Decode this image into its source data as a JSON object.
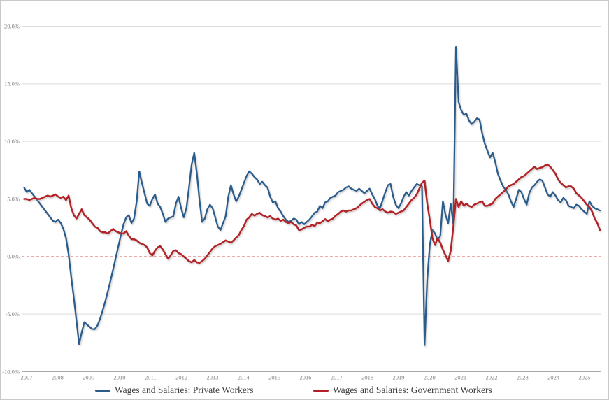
{
  "chart_data": {
    "type": "line",
    "title": "",
    "xlabel": "",
    "ylabel": "",
    "unit": "percent (year-over-year)",
    "x_frequency": "monthly",
    "x_start": "2007-01",
    "x_end": "2025-05",
    "ylim": [
      -10,
      20
    ],
    "grid": "horizontal",
    "legend_position": "bottom",
    "zero_line_style": "dashed-red",
    "colors": {
      "gridline": "#dcdcdc",
      "axis": "#a8a8a8",
      "tick_label": "#7f7f7f",
      "zero_dash": "#e07878",
      "private": "#2b5c8c",
      "government": "#b22026"
    },
    "yticks": [
      {
        "value": 20,
        "label": "20.0%"
      },
      {
        "value": 15,
        "label": "15.0%"
      },
      {
        "value": 10,
        "label": "10.0%"
      },
      {
        "value": 5,
        "label": "5.0%"
      },
      {
        "value": 0,
        "label": "0.0%"
      },
      {
        "value": -5,
        "label": "-5.0%"
      },
      {
        "value": -10,
        "label": "-10.0%"
      }
    ],
    "xticks": [
      "2007",
      "2008",
      "2009",
      "2010",
      "2011",
      "2012",
      "2013",
      "2014",
      "2015",
      "2016",
      "2017",
      "2018",
      "2019",
      "2020",
      "2021",
      "2022",
      "2023",
      "2024",
      "2025"
    ],
    "series": [
      {
        "name": "Wages and Salaries: Private Workers",
        "color": "#2b5c8c",
        "values": [
          6.0,
          5.6,
          5.8,
          5.5,
          5.2,
          4.9,
          4.6,
          4.3,
          4.0,
          3.7,
          3.4,
          3.1,
          3.0,
          3.2,
          2.9,
          2.4,
          1.6,
          0.2,
          -1.8,
          -3.6,
          -5.6,
          -7.6,
          -6.6,
          -5.7,
          -5.9,
          -6.1,
          -6.3,
          -6.3,
          -6.0,
          -5.4,
          -4.7,
          -3.9,
          -3.0,
          -2.1,
          -1.1,
          -0.1,
          0.9,
          1.9,
          2.8,
          3.4,
          3.6,
          2.9,
          3.3,
          4.8,
          7.4,
          6.4,
          5.5,
          4.6,
          4.4,
          5.0,
          5.4,
          4.6,
          4.3,
          3.7,
          3.0,
          3.3,
          3.4,
          3.5,
          4.6,
          5.2,
          4.2,
          3.4,
          4.2,
          6.0,
          8.0,
          9.0,
          7.2,
          4.9,
          3.0,
          3.3,
          4.1,
          4.5,
          4.2,
          3.4,
          2.6,
          2.3,
          2.9,
          3.5,
          5.2,
          6.2,
          5.4,
          4.8,
          5.2,
          5.8,
          6.4,
          7.0,
          7.4,
          7.2,
          6.9,
          6.7,
          6.3,
          6.5,
          6.2,
          6.0,
          5.2,
          4.7,
          4.8,
          4.2,
          3.9,
          3.5,
          3.2,
          3.0,
          3.1,
          3.3,
          3.2,
          2.8,
          3.0,
          2.8,
          3.0,
          3.2,
          3.5,
          3.8,
          3.9,
          4.4,
          4.2,
          4.7,
          4.8,
          5.1,
          5.2,
          5.3,
          5.6,
          5.7,
          5.8,
          6.0,
          6.1,
          5.9,
          5.8,
          5.7,
          5.9,
          5.7,
          5.5,
          5.7,
          5.9,
          5.4,
          5.0,
          4.4,
          4.2,
          4.9,
          5.6,
          6.2,
          6.3,
          5.2,
          4.5,
          4.2,
          4.6,
          5.2,
          5.6,
          5.3,
          5.7,
          6.0,
          6.3,
          6.2,
          6.1,
          -7.7,
          -2.0,
          1.0,
          2.3,
          2.0,
          1.4,
          1.8,
          4.8,
          3.6,
          2.9,
          4.6,
          2.8,
          18.2,
          13.4,
          12.7,
          12.3,
          12.4,
          11.8,
          11.5,
          11.7,
          12.0,
          11.9,
          10.7,
          9.8,
          9.2,
          8.6,
          9.0,
          8.2,
          7.2,
          6.6,
          6.1,
          5.8,
          5.4,
          4.8,
          4.3,
          5.0,
          5.8,
          5.6,
          5.0,
          4.5,
          5.5,
          6.0,
          6.2,
          6.5,
          6.7,
          6.6,
          6.0,
          5.4,
          5.2,
          5.6,
          5.3,
          4.9,
          4.7,
          5.1,
          4.9,
          4.4,
          4.3,
          4.2,
          4.5,
          4.4,
          4.1,
          3.9,
          3.7,
          4.8,
          4.4,
          4.2,
          4.1,
          4.0
        ]
      },
      {
        "name": "Wages and Salaries: Government Workers",
        "color": "#b22026",
        "values": [
          5.0,
          5.0,
          4.9,
          5.0,
          5.1,
          5.0,
          5.0,
          5.1,
          5.2,
          5.3,
          5.2,
          5.3,
          5.4,
          5.2,
          5.1,
          5.2,
          4.9,
          5.3,
          4.2,
          3.6,
          3.3,
          3.7,
          4.1,
          3.6,
          3.4,
          3.2,
          2.9,
          2.6,
          2.5,
          2.2,
          2.1,
          2.1,
          2.0,
          2.2,
          2.4,
          2.2,
          2.1,
          2.0,
          2.0,
          2.2,
          1.8,
          1.5,
          1.5,
          1.4,
          1.2,
          1.1,
          1.0,
          0.8,
          0.3,
          0.1,
          0.5,
          0.8,
          0.9,
          0.6,
          0.2,
          -0.2,
          0.1,
          0.5,
          0.55,
          0.3,
          0.2,
          0.0,
          -0.2,
          -0.4,
          -0.5,
          -0.3,
          -0.5,
          -0.55,
          -0.4,
          -0.2,
          0.1,
          0.4,
          0.7,
          0.9,
          1.0,
          1.1,
          1.25,
          1.4,
          1.3,
          1.2,
          1.4,
          1.65,
          1.85,
          2.3,
          2.65,
          3.2,
          3.4,
          3.7,
          3.55,
          3.7,
          3.8,
          3.6,
          3.5,
          3.4,
          3.5,
          3.3,
          3.2,
          3.3,
          3.1,
          3.2,
          3.0,
          2.9,
          3.0,
          2.8,
          2.7,
          2.3,
          2.35,
          2.5,
          2.6,
          2.6,
          2.75,
          2.65,
          2.95,
          2.9,
          3.05,
          3.25,
          3.05,
          3.2,
          3.3,
          3.55,
          3.7,
          3.9,
          4.0,
          3.9,
          4.0,
          4.0,
          4.1,
          4.2,
          4.4,
          4.6,
          4.75,
          4.9,
          5.0,
          4.6,
          4.3,
          4.2,
          4.0,
          4.1,
          3.9,
          3.8,
          3.9,
          3.85,
          3.7,
          3.8,
          3.9,
          4.0,
          4.3,
          4.6,
          4.9,
          5.1,
          5.4,
          5.9,
          6.4,
          6.6,
          4.6,
          3.2,
          1.6,
          1.0,
          1.6,
          1.2,
          0.6,
          0.1,
          -0.4,
          0.5,
          2.6,
          5.0,
          4.3,
          4.8,
          4.4,
          4.6,
          4.4,
          4.3,
          4.5,
          4.6,
          4.7,
          4.8,
          4.4,
          4.4,
          4.5,
          4.6,
          5.0,
          5.2,
          5.4,
          5.6,
          5.8,
          6.1,
          6.2,
          6.3,
          6.5,
          6.7,
          6.9,
          7.0,
          7.2,
          7.4,
          7.6,
          7.8,
          7.6,
          7.7,
          7.75,
          7.9,
          8.0,
          7.8,
          7.5,
          7.2,
          6.7,
          6.4,
          6.2,
          6.0,
          6.1,
          6.1,
          5.9,
          5.5,
          5.3,
          5.1,
          4.8,
          4.5,
          4.3,
          3.9,
          3.3,
          2.9,
          2.3
        ]
      }
    ]
  }
}
